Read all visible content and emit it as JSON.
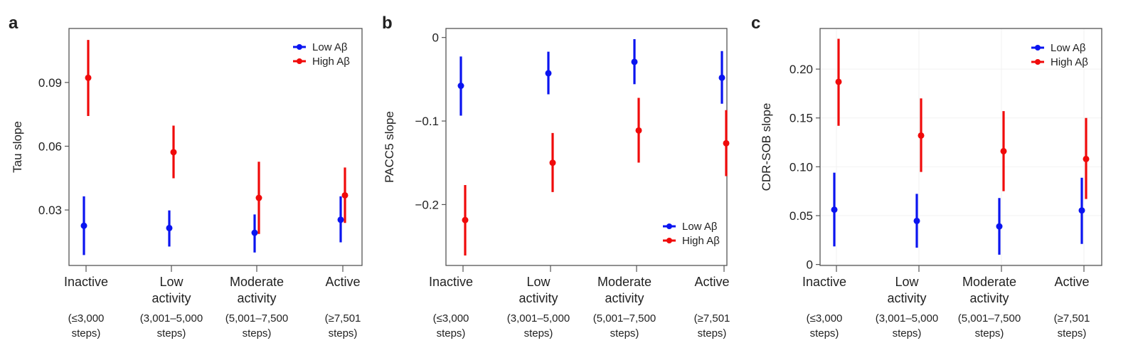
{
  "colors": {
    "low": "#0a14f0",
    "high": "#f00a0a",
    "axis": "#555555"
  },
  "chart_data": [
    {
      "panel": "a",
      "type": "scatter",
      "ylabel": "Tau slope",
      "ylim": [
        0.0039,
        0.1154
      ],
      "yticks": [
        0.03,
        0.06,
        0.09
      ],
      "ytick_labels": [
        "0.03",
        "0.06",
        "0.09"
      ],
      "legend_position": "top-right",
      "grid": false,
      "categories": [
        {
          "name": [
            "Inactive"
          ],
          "steps": [
            "(≤3,000",
            "steps)"
          ]
        },
        {
          "name": [
            "Low",
            "activity"
          ],
          "steps": [
            "(3,001–5,000",
            "steps)"
          ]
        },
        {
          "name": [
            "Moderate",
            "activity"
          ],
          "steps": [
            "(5,001–7,500",
            "steps)"
          ]
        },
        {
          "name": [
            "Active"
          ],
          "steps": [
            "(≥7,501",
            "steps)"
          ]
        }
      ],
      "series": [
        {
          "name": "Low Aβ",
          "color_key": "low",
          "values": [
            0.0226,
            0.0215,
            0.0193,
            0.0254
          ],
          "ci_low": [
            0.0088,
            0.0128,
            0.01,
            0.0148
          ],
          "ci_high": [
            0.0364,
            0.0298,
            0.0279,
            0.0364
          ]
        },
        {
          "name": "High Aβ",
          "color_key": "high",
          "values": [
            0.0922,
            0.0572,
            0.0357,
            0.0369
          ],
          "ci_low": [
            0.0742,
            0.0449,
            0.0187,
            0.0239
          ],
          "ci_high": [
            0.11,
            0.0697,
            0.0527,
            0.05
          ]
        }
      ]
    },
    {
      "panel": "b",
      "type": "scatter",
      "ylabel": "PACC5 slope",
      "ylim": [
        -0.2729,
        0.0108
      ],
      "yticks": [
        -0.2,
        -0.1,
        0
      ],
      "ytick_labels": [
        "−0.2",
        "−0.1",
        "0"
      ],
      "legend_position": "bottom-right",
      "grid": false,
      "categories": [
        {
          "name": [
            "Inactive"
          ],
          "steps": [
            "(≤3,000",
            "steps)"
          ]
        },
        {
          "name": [
            "Low",
            "activity"
          ],
          "steps": [
            "(3,001–5,000",
            "steps)"
          ]
        },
        {
          "name": [
            "Moderate",
            "activity"
          ],
          "steps": [
            "(5,001–7,500",
            "steps)"
          ]
        },
        {
          "name": [
            "Active"
          ],
          "steps": [
            "(≥7,501",
            "steps)"
          ]
        }
      ],
      "series": [
        {
          "name": "Low Aβ",
          "color_key": "low",
          "values": [
            -0.0578,
            -0.0428,
            -0.0292,
            -0.0482
          ],
          "ci_low": [
            -0.0936,
            -0.068,
            -0.0559,
            -0.0793
          ],
          "ci_high": [
            -0.0227,
            -0.017,
            -0.002,
            -0.0162
          ]
        },
        {
          "name": "High Aβ",
          "color_key": "high",
          "values": [
            -0.2185,
            -0.15,
            -0.1113,
            -0.1266
          ],
          "ci_low": [
            -0.261,
            -0.185,
            -0.1498,
            -0.166
          ],
          "ci_high": [
            -0.1766,
            -0.1143,
            -0.0723,
            -0.087
          ]
        }
      ]
    },
    {
      "panel": "c",
      "type": "scatter",
      "ylabel": "CDR-SOB slope",
      "ylim": [
        -0.001,
        0.2416
      ],
      "yticks": [
        0,
        0.05,
        0.1,
        0.15,
        0.2
      ],
      "ytick_labels": [
        "0",
        "0.05",
        "0.10",
        "0.15",
        "0.20"
      ],
      "legend_position": "top-right",
      "grid": true,
      "categories": [
        {
          "name": [
            "Inactive"
          ],
          "steps": [
            "(≤3,000",
            "steps)"
          ]
        },
        {
          "name": [
            "Low",
            "activity"
          ],
          "steps": [
            "(3,001–5,000",
            "steps)"
          ]
        },
        {
          "name": [
            "Moderate",
            "activity"
          ],
          "steps": [
            "(5,001–7,500",
            "steps)"
          ]
        },
        {
          "name": [
            "Active"
          ],
          "steps": [
            "(≥7,501",
            "steps)"
          ]
        }
      ],
      "series": [
        {
          "name": "Low Aβ",
          "color_key": "low",
          "values": [
            0.0561,
            0.0446,
            0.039,
            0.0553
          ],
          "ci_low": [
            0.0185,
            0.0172,
            0.01,
            0.021
          ],
          "ci_high": [
            0.094,
            0.0723,
            0.068,
            0.0888
          ]
        },
        {
          "name": "High Aβ",
          "color_key": "high",
          "values": [
            0.187,
            0.132,
            0.116,
            0.108
          ],
          "ci_low": [
            0.142,
            0.0947,
            0.075,
            0.067
          ],
          "ci_high": [
            0.231,
            0.17,
            0.157,
            0.15
          ]
        }
      ]
    }
  ]
}
